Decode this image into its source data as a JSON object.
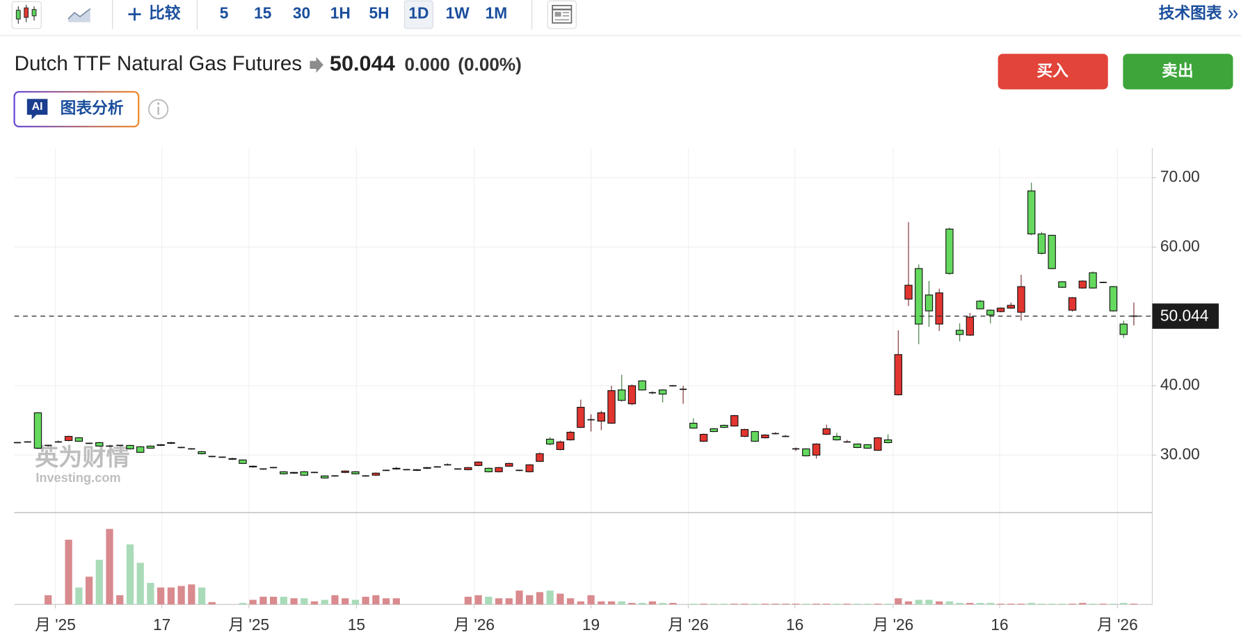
{
  "toolbar": {
    "compare": "比较",
    "intervals": [
      "5",
      "15",
      "30",
      "1H",
      "5H",
      "1D",
      "1W",
      "1M"
    ],
    "selected_interval_index": 5,
    "technical": "技术图表"
  },
  "header": {
    "title": "Dutch TTF Natural Gas Futures",
    "change": "0.000",
    "change_pct": "(0.00%)"
  },
  "buttons": {
    "buy": "买入",
    "sell": "卖出"
  },
  "ai_badge": {
    "icon": "AI",
    "label": "图表分析"
  },
  "watermark": {
    "cn": "英为财情",
    "en": "Investing.com"
  },
  "chart_data": {
    "type": "candlestick",
    "last_price": 50.044,
    "up_color": "#e2352f",
    "down_color": "#64d95e",
    "volume_up_color": "#d98a8e",
    "volume_down_color": "#a9dbb9",
    "grid": true,
    "xlim": [
      -0.3,
      110.8
    ],
    "xticks": [
      {
        "value": 3.7,
        "label": "月 '25"
      },
      {
        "value": 14.1,
        "label": "17"
      },
      {
        "value": 22.6,
        "label": "月 '25"
      },
      {
        "value": 33.1,
        "label": "15"
      },
      {
        "value": 44.6,
        "label": "月 '26"
      },
      {
        "value": 56.0,
        "label": "19"
      },
      {
        "value": 65.5,
        "label": "月 '26"
      },
      {
        "value": 75.9,
        "label": "16"
      },
      {
        "value": 85.5,
        "label": "月 '26"
      },
      {
        "value": 95.9,
        "label": "16"
      },
      {
        "value": 107.4,
        "label": "月 '26"
      }
    ],
    "ylim": [
      21.7,
      74.3
    ],
    "yticks": [
      {
        "value": 30,
        "label": "30.00"
      },
      {
        "value": 40,
        "label": "40.00"
      },
      {
        "value": 60,
        "label": "60.00"
      },
      {
        "value": 70,
        "label": "70.00"
      }
    ],
    "volume_lim": [
      0,
      115
    ],
    "open": [
      31.8,
      31.9,
      36.1,
      31.4,
      31.9,
      32.1,
      32.5,
      31.7,
      31.8,
      31.3,
      31.4,
      31.4,
      31.2,
      31.3,
      31.4,
      31.7,
      31.1,
      30.9,
      30.5,
      29.8,
      29.7,
      29.4,
      29.3,
      28.3,
      28.0,
      28.2,
      27.6,
      27.4,
      27.6,
      27.5,
      27.0,
      27.0,
      27.5,
      27.6,
      27.0,
      27.1,
      27.8,
      28.0,
      27.9,
      27.8,
      28.1,
      28.3,
      28.6,
      28.0,
      27.9,
      28.5,
      28.1,
      27.6,
      28.4,
      27.8,
      27.6,
      29.1,
      32.3,
      30.8,
      32.2,
      34.0,
      35.1,
      34.9,
      34.6,
      39.4,
      37.4,
      40.7,
      39.0,
      39.4,
      40.0,
      39.5,
      34.6,
      32.0,
      33.8,
      34.3,
      34.2,
      32.7,
      33.4,
      32.5,
      33.1,
      32.7,
      30.9,
      30.9,
      30.0,
      33.0,
      32.7,
      31.9,
      31.6,
      31.5,
      30.7,
      32.2,
      38.7,
      52.5,
      56.9,
      53.1,
      48.9,
      62.6,
      48.0,
      47.3,
      52.2,
      50.9,
      50.7,
      51.2,
      50.6,
      68.1,
      61.9,
      61.7,
      55.0,
      50.9,
      54.1,
      56.3,
      54.9,
      54.3,
      48.9,
      50.044
    ],
    "high": [
      31.9,
      32.0,
      36.2,
      31.5,
      32.1,
      32.8,
      32.6,
      31.8,
      31.9,
      31.4,
      31.5,
      31.5,
      31.3,
      31.4,
      31.6,
      31.9,
      31.2,
      31.0,
      30.6,
      29.9,
      29.8,
      29.6,
      29.4,
      28.5,
      28.1,
      28.3,
      27.7,
      27.6,
      27.7,
      27.6,
      27.1,
      27.1,
      27.8,
      27.7,
      27.1,
      27.5,
      27.9,
      28.3,
      28.0,
      28.0,
      28.3,
      28.4,
      28.8,
      28.1,
      28.3,
      29.1,
      28.2,
      28.3,
      28.9,
      27.9,
      28.7,
      30.4,
      32.6,
      32.1,
      33.5,
      38.0,
      35.9,
      36.4,
      40.0,
      41.6,
      40.2,
      40.8,
      39.2,
      39.5,
      40.1,
      40.0,
      35.3,
      33.1,
      33.9,
      34.4,
      35.8,
      33.8,
      33.5,
      33.0,
      33.3,
      32.9,
      31.1,
      31.0,
      31.7,
      34.4,
      33.2,
      32.2,
      31.7,
      31.6,
      32.6,
      33.0,
      48.0,
      63.6,
      57.5,
      55.1,
      54.0,
      62.8,
      49.0,
      50.5,
      52.4,
      51.0,
      51.3,
      52.0,
      56.0,
      69.3,
      62.2,
      61.8,
      55.1,
      52.8,
      55.2,
      56.5,
      55.0,
      54.4,
      49.4,
      52.0
    ],
    "low": [
      31.7,
      31.8,
      30.9,
      31.2,
      31.8,
      32.0,
      31.9,
      31.6,
      31.2,
      31.2,
      31.3,
      30.8,
      30.3,
      30.9,
      31.3,
      31.6,
      31.0,
      30.8,
      30.1,
      29.7,
      29.6,
      29.3,
      28.7,
      28.2,
      27.9,
      28.1,
      27.2,
      27.3,
      27.0,
      27.4,
      26.6,
      26.9,
      27.4,
      27.2,
      26.9,
      27.0,
      27.7,
      27.9,
      27.8,
      27.7,
      28.0,
      28.2,
      28.5,
      27.9,
      27.8,
      28.4,
      27.5,
      27.5,
      28.3,
      27.7,
      27.5,
      29.0,
      31.4,
      30.7,
      32.1,
      33.9,
      33.4,
      33.6,
      34.5,
      37.7,
      37.2,
      39.3,
      38.8,
      37.6,
      39.9,
      37.4,
      33.8,
      31.9,
      33.3,
      33.9,
      34.1,
      32.6,
      31.9,
      32.4,
      33.0,
      32.6,
      30.6,
      29.8,
      29.5,
      32.9,
      32.1,
      31.8,
      31.0,
      30.9,
      30.6,
      31.7,
      38.6,
      51.5,
      46.0,
      48.5,
      47.9,
      56.0,
      46.4,
      47.2,
      51.0,
      49.0,
      50.6,
      51.1,
      49.4,
      61.7,
      58.9,
      56.8,
      54.1,
      50.7,
      54.0,
      54.0,
      54.8,
      50.7,
      46.9,
      48.7
    ],
    "close": [
      31.8,
      31.9,
      31.0,
      31.4,
      31.9,
      32.7,
      32.0,
      31.7,
      31.3,
      31.3,
      31.4,
      30.9,
      30.4,
      31.0,
      31.5,
      31.8,
      31.1,
      30.9,
      30.2,
      29.8,
      29.7,
      29.5,
      28.8,
      28.4,
      28.0,
      28.2,
      27.3,
      27.5,
      27.1,
      27.5,
      26.7,
      27.0,
      27.7,
      27.3,
      27.0,
      27.4,
      27.8,
      28.1,
      27.9,
      27.9,
      28.2,
      28.3,
      28.6,
      28.0,
      28.2,
      29.0,
      27.6,
      28.2,
      28.8,
      27.8,
      28.6,
      30.2,
      31.6,
      31.9,
      33.3,
      36.9,
      35.1,
      36.1,
      39.3,
      37.9,
      40.0,
      39.4,
      39.0,
      38.8,
      40.0,
      39.5,
      33.9,
      33.0,
      33.4,
      34.0,
      35.7,
      33.7,
      32.0,
      32.9,
      33.1,
      32.7,
      30.9,
      29.9,
      31.6,
      33.8,
      32.2,
      31.9,
      31.1,
      31.0,
      32.5,
      31.8,
      44.5,
      54.5,
      48.9,
      50.8,
      53.4,
      56.2,
      47.4,
      49.9,
      51.1,
      50.2,
      51.2,
      51.6,
      54.3,
      61.9,
      59.1,
      56.9,
      54.2,
      52.7,
      55.1,
      54.1,
      54.9,
      50.8,
      47.4,
      50.044
    ],
    "volume": [
      0,
      0,
      0,
      12,
      0,
      84,
      22,
      36,
      58,
      98,
      12,
      78,
      54,
      28,
      22,
      22,
      24,
      26,
      22,
      3,
      0,
      0,
      2,
      6,
      10,
      10,
      10,
      8,
      8,
      4,
      6,
      12,
      8,
      6,
      10,
      12,
      8,
      8,
      0,
      0,
      0,
      0,
      0,
      0,
      10,
      12,
      10,
      8,
      8,
      18,
      12,
      16,
      18,
      14,
      8,
      4,
      12,
      4,
      4,
      4,
      2,
      2,
      4,
      2,
      2,
      0,
      1,
      1,
      1,
      1,
      1,
      1,
      1,
      1,
      1,
      1,
      1,
      1,
      1,
      1,
      1,
      1,
      1,
      1,
      1,
      1,
      8,
      4,
      6,
      6,
      4,
      4,
      2,
      2,
      2,
      2,
      1,
      1,
      1,
      2,
      1,
      1,
      1,
      1,
      2,
      1,
      1,
      1,
      2,
      1
    ]
  }
}
